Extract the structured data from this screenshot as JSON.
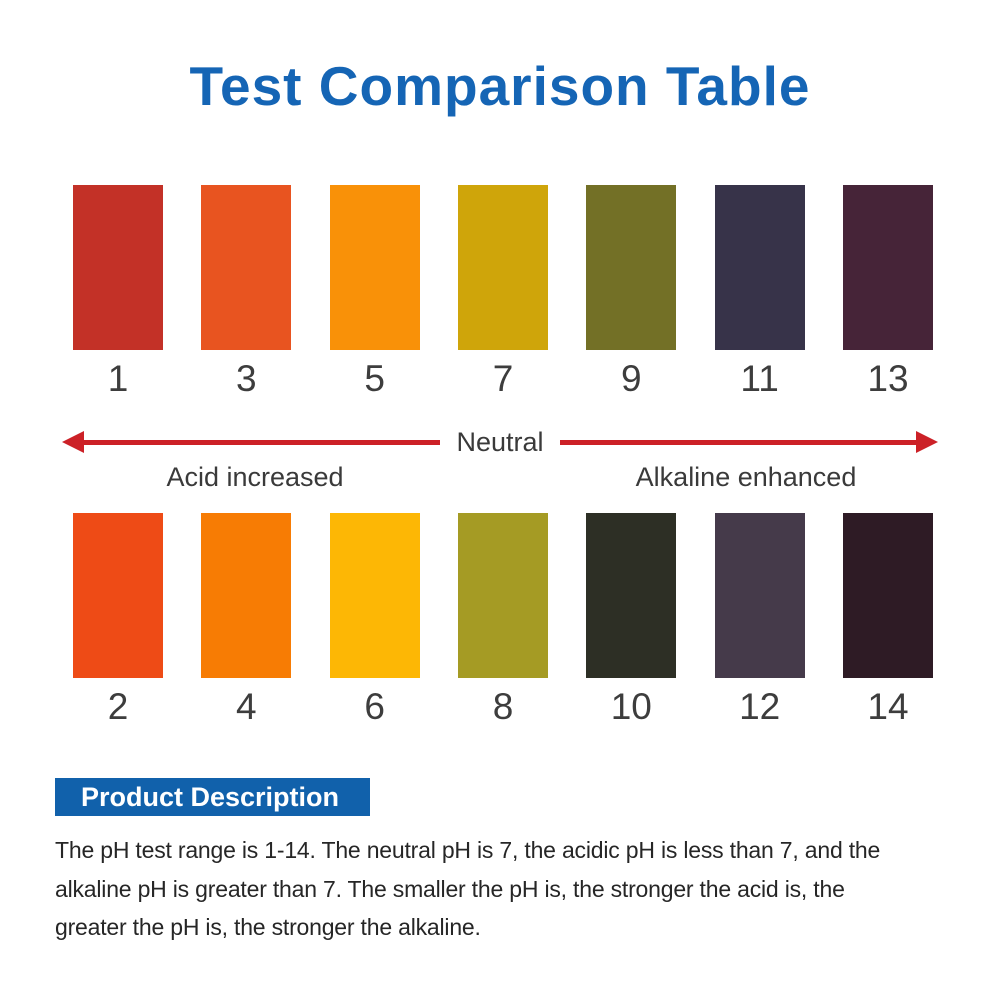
{
  "title": "Test Comparison Table",
  "colors": {
    "title_blue": "#1565b5",
    "banner_blue": "#1161ab",
    "arrow_red": "#cc2127",
    "label_gray": "#3a3a3a"
  },
  "scale": {
    "row_odd": [
      {
        "ph": "1",
        "color": "#c33127"
      },
      {
        "ph": "3",
        "color": "#e85420"
      },
      {
        "ph": "5",
        "color": "#f99108"
      },
      {
        "ph": "7",
        "color": "#cfa50a"
      },
      {
        "ph": "9",
        "color": "#737026"
      },
      {
        "ph": "11",
        "color": "#373349"
      },
      {
        "ph": "13",
        "color": "#462438"
      }
    ],
    "row_even": [
      {
        "ph": "2",
        "color": "#ee4b16"
      },
      {
        "ph": "4",
        "color": "#f77c04"
      },
      {
        "ph": "6",
        "color": "#fdb705"
      },
      {
        "ph": "8",
        "color": "#a59b24"
      },
      {
        "ph": "10",
        "color": "#2d2f25"
      },
      {
        "ph": "12",
        "color": "#453a4a"
      },
      {
        "ph": "14",
        "color": "#2e1b25"
      }
    ]
  },
  "axis": {
    "neutral_label": "Neutral",
    "acid_label": "Acid increased",
    "alkaline_label": "Alkaline enhanced"
  },
  "description": {
    "heading": "Product Description",
    "lines": [
      {
        "text": "The pH test range is 1-14. The neutral pH is 7, the acidic pH is less than 7, and the"
      },
      {
        "text": "alkaline pH is greater than 7. The smaller the pH is, the stronger the acid is, the"
      },
      {
        "text": "greater the pH is, the stronger the alkaline."
      }
    ],
    "full_text": "The pH test range is 1-14. The neutral pH is 7, the acidic pH is less than 7, and the alkaline pH is greater than 7. The smaller the pH is, the stronger the acid is, the greater the pH is, the stronger the alkaline."
  }
}
